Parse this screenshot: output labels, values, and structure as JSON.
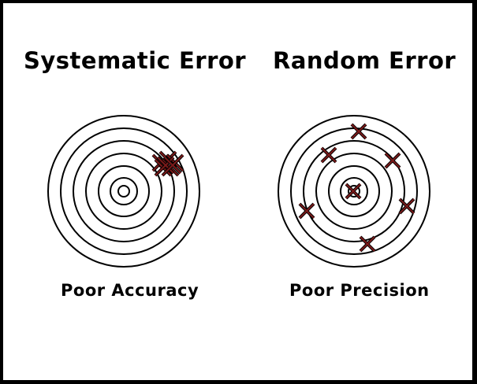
{
  "panels": [
    {
      "title": "Systematic Error",
      "caption": "Poor Accuracy"
    },
    {
      "title": "Random Error",
      "caption": "Poor Precision"
    }
  ],
  "colors": {
    "background": "#ffffff",
    "frame": "#000000",
    "ring": "#000000",
    "mark_outer": "#000000",
    "mark_inner": "#7a1a1a"
  }
}
